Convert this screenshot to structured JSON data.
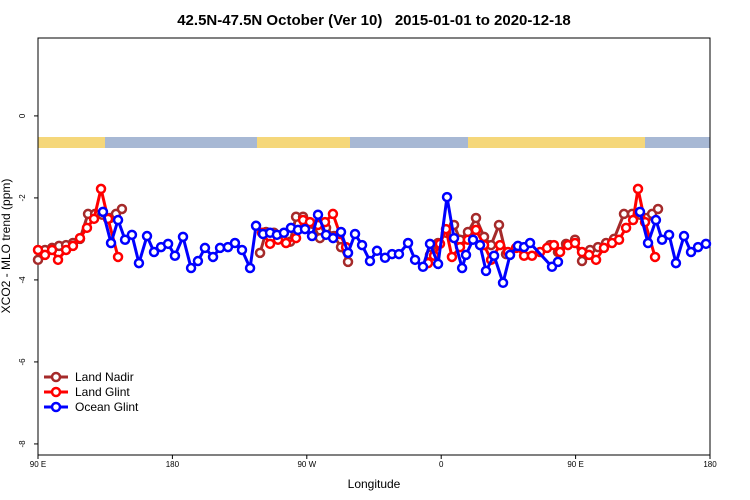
{
  "chart_data": {
    "type": "line",
    "title": "42.5N-47.5N October (Ver 10)   2015-01-01 to 2020-12-18",
    "xlabel": "Longitude",
    "ylabel": "XCO2 - MLO trend (ppm)",
    "xlim": [
      90,
      540
    ],
    "ylim": [
      -8.27,
      1.9
    ],
    "xticks": [
      {
        "value": 90,
        "label": "90 E"
      },
      {
        "value": 180,
        "label": "180"
      },
      {
        "value": 270,
        "label": "90 W"
      },
      {
        "value": 360,
        "label": "0"
      },
      {
        "value": 450,
        "label": "90 E"
      },
      {
        "value": 540,
        "label": "180"
      }
    ],
    "yticks": [
      -8,
      -6,
      -4,
      -2,
      0
    ],
    "legend": "bottom-left",
    "series": [
      {
        "name": "Land Nadir",
        "color": "#a52a2a",
        "x": [
          90,
          94.7,
          99.4,
          104.1,
          108.8,
          113.4,
          118.1,
          123.5,
          128.2,
          132.9,
          138.2,
          142.2,
          146.2,
          null,
          238.7,
          242.7,
          248.0,
          253.4,
          258.8,
          262.8,
          267.5,
          273.5,
          278.8,
          282.9,
          288.2,
          292.9,
          297.6,
          null,
          352.5,
          357.9,
          363.2,
          368.6,
          372.6,
          377.9,
          383.3,
          388.7,
          393.4,
          398.7,
          403.4,
          null,
          432.9,
          438.2,
          443.6,
          449.6,
          454.3,
          459.7,
          465.0,
          470.4,
          475.7,
          482.4,
          487.8,
          493.1,
          497.2,
          501.2,
          505.2
        ],
        "values": [
          -3.51,
          -3.27,
          -3.22,
          -3.17,
          -3.15,
          -3.1,
          -3.0,
          -2.39,
          -2.39,
          -2.41,
          -2.49,
          -2.39,
          -2.27,
          null,
          -3.34,
          -2.83,
          -2.85,
          -2.98,
          -3.07,
          -2.46,
          -2.46,
          -2.63,
          -2.98,
          -2.73,
          -2.93,
          -3.2,
          -3.56,
          null,
          -3.39,
          -3.1,
          -2.85,
          -2.66,
          -3.02,
          -2.83,
          -2.49,
          -2.95,
          -3.15,
          -2.66,
          -3.37,
          null,
          -3.15,
          -3.32,
          -3.12,
          -3.02,
          -3.54,
          -3.27,
          -3.2,
          -3.1,
          -3.0,
          -2.39,
          -2.39,
          -2.41,
          -2.49,
          -2.39,
          -2.27
        ]
      },
      {
        "name": "Land Glint",
        "color": "#ff0000",
        "x": [
          90,
          94.7,
          99.4,
          103.4,
          108.8,
          113.4,
          118.1,
          122.8,
          127.5,
          132.2,
          136.9,
          143.6,
          null,
          240.0,
          245.4,
          250.7,
          256.1,
          262.8,
          267.5,
          272.1,
          277.5,
          282.2,
          287.5,
          292.2,
          296.3,
          null,
          351.2,
          355.2,
          359.2,
          363.2,
          367.2,
          372.6,
          377.9,
          383.3,
          388.7,
          393.4,
          399.4,
          404.7,
          410.1,
          415.5,
          420.8,
          426.2,
          430.9,
          435.5,
          439.6,
          444.9,
          449.6,
          454.3,
          459.0,
          463.7,
          469.0,
          474.4,
          479.1,
          483.8,
          488.5,
          491.8,
          496.5,
          503.2
        ],
        "values": [
          -3.27,
          -3.39,
          -3.27,
          -3.51,
          -3.27,
          -3.17,
          -2.98,
          -2.73,
          -2.51,
          -1.78,
          -2.51,
          -3.44,
          null,
          -2.85,
          -3.12,
          -3.02,
          -3.1,
          -2.98,
          -2.54,
          -2.59,
          -2.66,
          -2.59,
          -2.39,
          -2.88,
          -3.2,
          null,
          -3.59,
          -3.41,
          -3.12,
          -2.76,
          -3.44,
          -3.2,
          -3.02,
          -2.78,
          -3.15,
          -3.51,
          -3.15,
          -3.32,
          -3.22,
          -3.41,
          -3.41,
          -3.32,
          -3.22,
          -3.15,
          -3.32,
          -3.15,
          -3.1,
          -3.32,
          -3.39,
          -3.51,
          -3.22,
          -3.1,
          -3.02,
          -2.73,
          -2.54,
          -1.78,
          -2.59,
          -3.44
        ]
      },
      {
        "name": "Ocean Glint",
        "color": "#0000ff",
        "x": [
          133.5,
          138.9,
          143.6,
          148.3,
          152.9,
          157.6,
          163.0,
          167.7,
          172.4,
          177.1,
          181.7,
          187.1,
          192.5,
          197.1,
          201.8,
          207.2,
          211.9,
          217.2,
          221.9,
          226.6,
          232.0,
          236.0,
          240.7,
          245.4,
          250.0,
          254.7,
          259.4,
          264.1,
          268.8,
          273.5,
          277.5,
          282.9,
          287.6,
          292.9,
          297.6,
          302.3,
          307.0,
          312.3,
          317.0,
          322.4,
          327.1,
          331.7,
          337.8,
          342.5,
          347.8,
          352.5,
          357.9,
          363.9,
          368.6,
          374.0,
          376.6,
          381.3,
          386.0,
          390.0,
          395.4,
          401.4,
          406.1,
          411.4,
          415.5,
          419.5,
          434.2,
          438.2,
          null,
          493.1,
          498.5,
          503.8,
          507.9,
          512.6,
          517.2,
          522.6,
          527.3,
          532.0,
          537.3
        ],
        "values": [
          -2.34,
          -3.1,
          -2.54,
          -3.02,
          -2.9,
          -3.59,
          -2.93,
          -3.32,
          -3.2,
          -3.12,
          -3.41,
          -2.95,
          -3.71,
          -3.54,
          -3.22,
          -3.44,
          -3.22,
          -3.2,
          -3.1,
          -3.27,
          -3.71,
          -2.68,
          -2.88,
          -2.85,
          -2.9,
          -2.85,
          -2.73,
          -2.78,
          -2.76,
          -2.93,
          -2.41,
          -2.9,
          -2.98,
          -2.83,
          -3.34,
          -2.88,
          -3.15,
          -3.54,
          -3.29,
          -3.46,
          -3.37,
          -3.37,
          -3.1,
          -3.51,
          -3.68,
          -3.12,
          -3.61,
          -1.98,
          -2.98,
          -3.71,
          -3.39,
          -3.02,
          -3.15,
          -3.78,
          -3.41,
          -4.07,
          -3.39,
          -3.17,
          -3.2,
          -3.1,
          -3.68,
          -3.56,
          null,
          -2.34,
          -3.1,
          -2.54,
          -3.02,
          -2.9,
          -3.59,
          -2.93,
          -3.32,
          -3.2,
          -3.12
        ]
      }
    ]
  }
}
